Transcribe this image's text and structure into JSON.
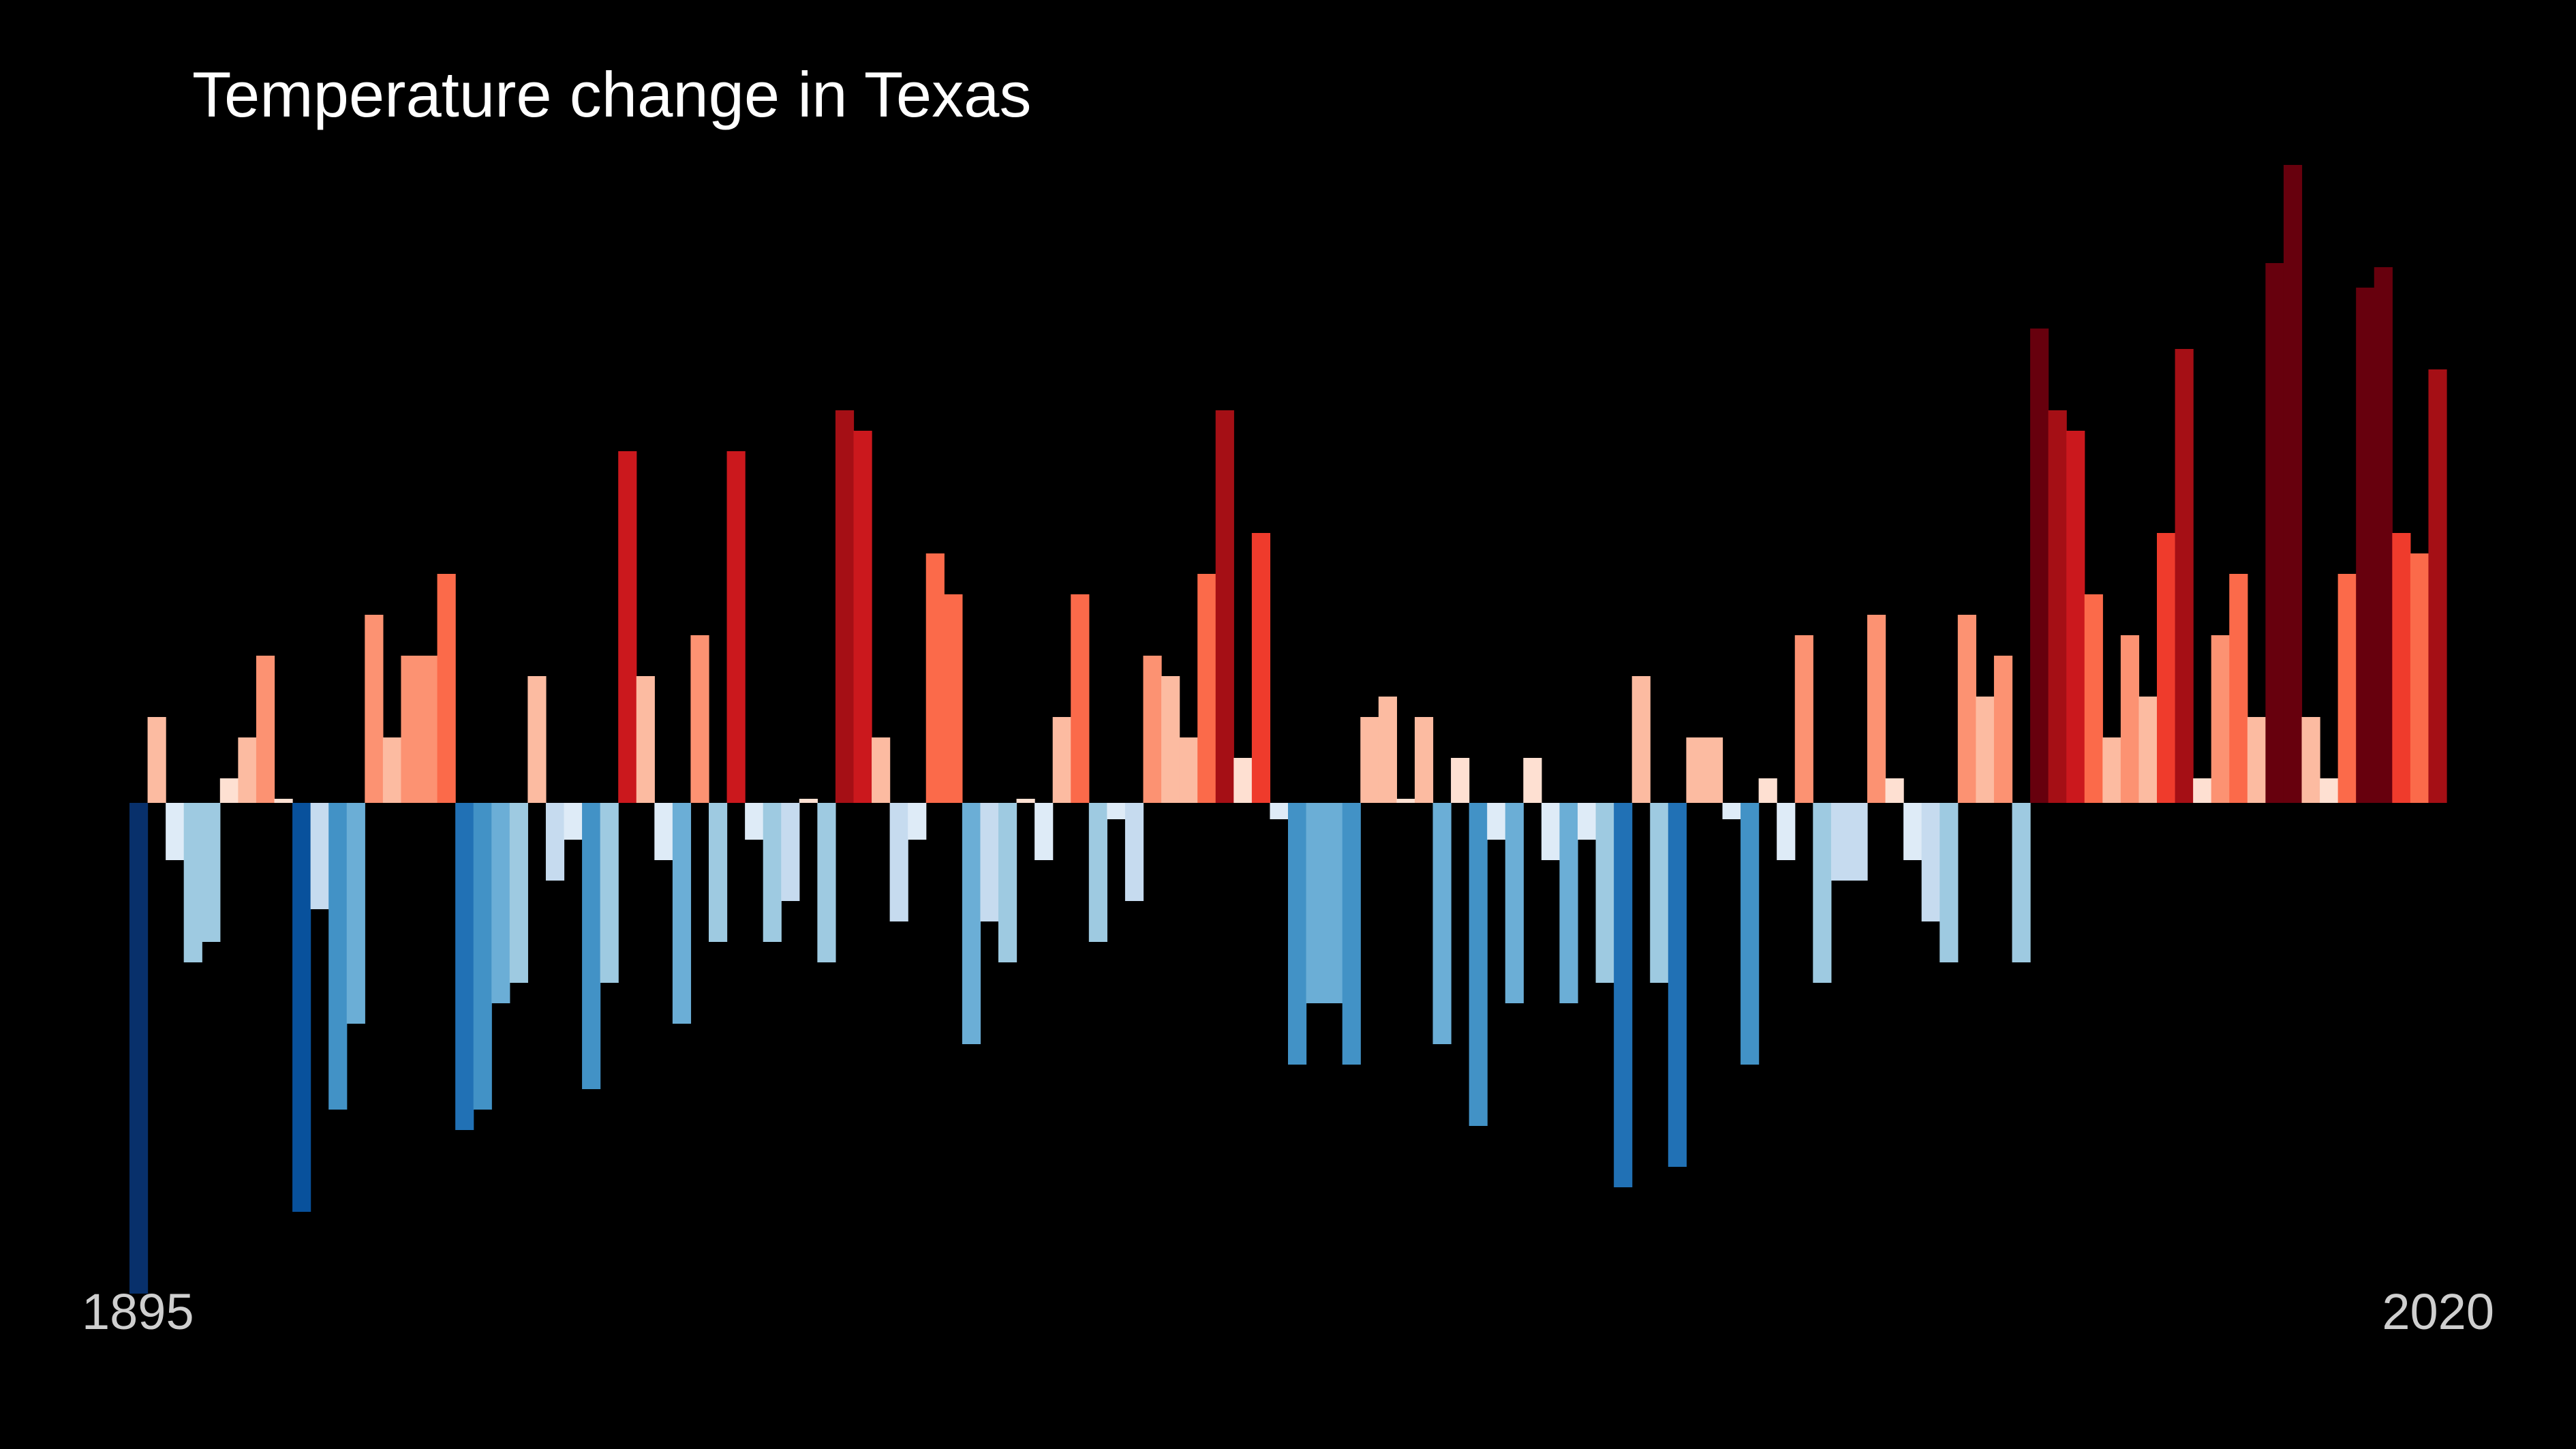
{
  "chart_data": {
    "type": "bar",
    "title": "Temperature change in Texas",
    "xlabel": "",
    "ylabel": "",
    "x_tick_labels": [
      "1895",
      "2020"
    ],
    "x_start": 1895,
    "x_end": 2020,
    "ylim": [
      -6.1,
      8.0
    ],
    "grid": false,
    "legend": "none",
    "color_scale": {
      "cold": [
        "#08306b",
        "#08519c",
        "#2171b5",
        "#4292c6",
        "#6baed6",
        "#9ecae1",
        "#c6dbef",
        "#deebf7"
      ],
      "warm": [
        "#fee0d2",
        "#fcbba1",
        "#fc9272",
        "#fb6a4a",
        "#ef3b2c",
        "#cb181d",
        "#a50f15",
        "#67000d"
      ]
    },
    "series": [
      {
        "values": [
          -6.0,
          1.05,
          -0.7,
          -1.95,
          -1.7,
          0.3,
          0.8,
          1.8,
          0.05,
          -5.0,
          -1.3,
          -3.75,
          -2.7,
          2.3,
          0.8,
          1.8,
          1.8,
          2.8,
          -4.0,
          -3.75,
          -2.45,
          -2.2,
          1.55,
          -0.95,
          -0.45,
          -3.5,
          -2.2,
          4.3,
          1.55,
          -0.7,
          -2.7,
          2.05,
          -1.7,
          4.3,
          -0.45,
          -1.7,
          -1.2,
          0.05,
          -1.95,
          4.8,
          4.55,
          0.8,
          -1.45,
          -0.45,
          3.05,
          2.55,
          -2.95,
          -1.45,
          -1.95,
          0.05,
          -0.7,
          1.05,
          2.55,
          -1.7,
          -0.2,
          -1.2,
          1.8,
          1.55,
          0.8,
          2.8,
          4.8,
          0.55,
          3.3,
          -0.2,
          -3.2,
          -2.45,
          -2.45,
          -3.2,
          1.05,
          1.3,
          0.05,
          1.05,
          -2.95,
          0.55,
          -3.95,
          -0.45,
          -2.45,
          0.55,
          -0.7,
          -2.45,
          -0.45,
          -2.2,
          -4.7,
          1.55,
          -2.2,
          -4.45,
          0.8,
          0.8,
          -0.2,
          -3.2,
          0.3,
          -0.7,
          2.05,
          -2.2,
          -0.95,
          -0.95,
          2.3,
          0.3,
          -0.7,
          -1.45,
          -1.95,
          2.3,
          1.3,
          1.8,
          -1.95,
          5.8,
          4.8,
          4.55,
          2.55,
          0.8,
          2.05,
          1.3,
          3.3,
          5.55,
          0.3,
          2.05,
          2.8,
          1.05,
          6.6,
          7.8,
          1.05,
          0.3,
          2.8,
          6.3,
          6.55,
          3.3,
          3.05,
          5.3
        ]
      }
    ]
  }
}
